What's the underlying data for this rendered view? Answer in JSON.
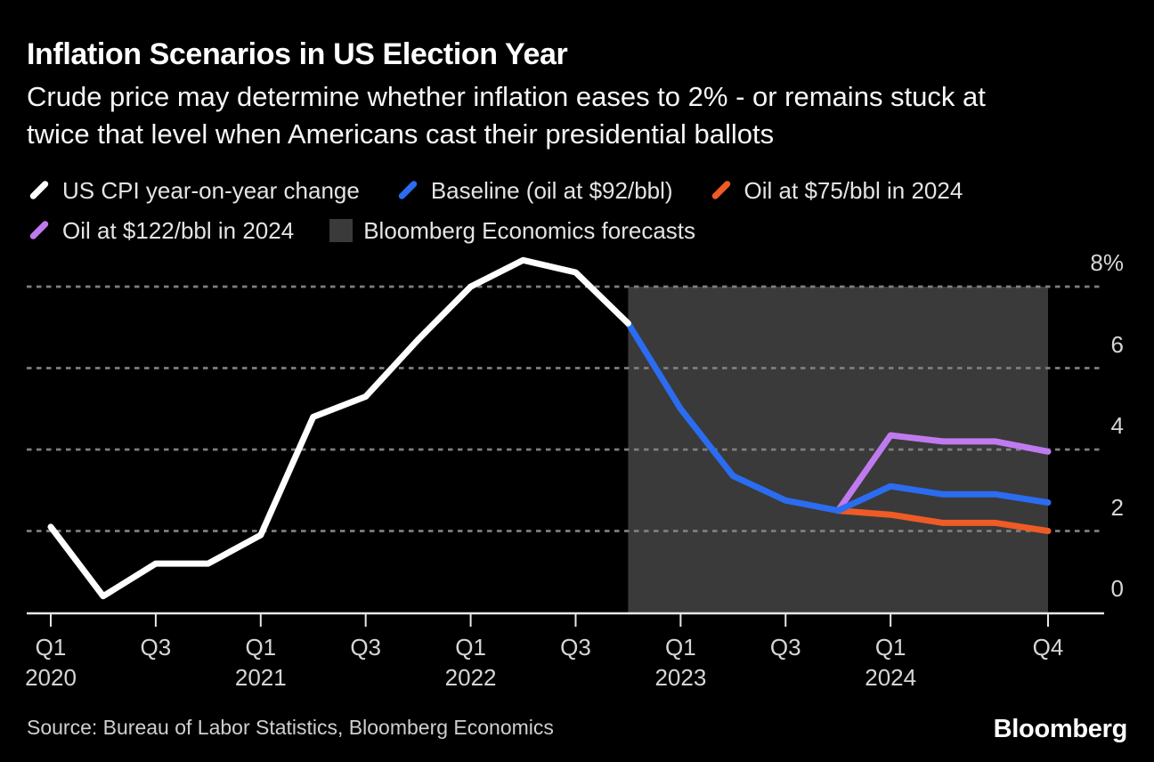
{
  "header": {
    "title": "Inflation Scenarios in US Election Year",
    "subtitle_lines": [
      "Crude price may determine whether inflation eases to 2% - or remains stuck at",
      "twice that level when Americans cast their presidential ballots"
    ]
  },
  "legend": {
    "items": [
      {
        "label": "US CPI year-on-year change",
        "color": "#ffffff",
        "marker": "slash"
      },
      {
        "label": "Baseline (oil at $92/bbl)",
        "color": "#2b6cf0",
        "marker": "slash"
      },
      {
        "label": "Oil at $75/bbl in 2024",
        "color": "#ef5b25",
        "marker": "slash"
      },
      {
        "label": "Oil at $122/bbl in 2024",
        "color": "#c07af0",
        "marker": "slash"
      },
      {
        "label": "Bloomberg Economics forecasts",
        "color": "#3a3a3a",
        "marker": "square"
      }
    ]
  },
  "chart_data": {
    "type": "line",
    "title": "Inflation Scenarios in US Election Year",
    "xlabel": "",
    "ylabel": "US CPI year-on-year change, %",
    "ylim": [
      0,
      8.8
    ],
    "grid": "dashed-horizontal",
    "legend_position": "top",
    "x_unit": "quarters from Q1 2020 (index 0) to Q4 2024 (index 19)",
    "yticks": [
      {
        "value": 8,
        "label": "8%"
      },
      {
        "value": 6,
        "label": "6"
      },
      {
        "value": 4,
        "label": "4"
      },
      {
        "value": 2,
        "label": "2"
      },
      {
        "value": 0,
        "label": "0"
      }
    ],
    "xticks": [
      {
        "q": 0,
        "label": "Q1",
        "year": "2020"
      },
      {
        "q": 2,
        "label": "Q3",
        "year": ""
      },
      {
        "q": 4,
        "label": "Q1",
        "year": "2021"
      },
      {
        "q": 6,
        "label": "Q3",
        "year": ""
      },
      {
        "q": 8,
        "label": "Q1",
        "year": "2022"
      },
      {
        "q": 10,
        "label": "Q3",
        "year": ""
      },
      {
        "q": 12,
        "label": "Q1",
        "year": "2023"
      },
      {
        "q": 14,
        "label": "Q3",
        "year": ""
      },
      {
        "q": 16,
        "label": "Q1",
        "year": "2024"
      },
      {
        "q": 19,
        "label": "Q4",
        "year": ""
      }
    ],
    "forecast_region": {
      "label": "Bloomberg Economics forecasts",
      "start_q": 11,
      "end_q": 19,
      "color": "#3a3a3a"
    },
    "series": [
      {
        "name": "US CPI year-on-year change",
        "slug": "us-cpi",
        "color": "#ffffff",
        "width": 7,
        "start_q": 0,
        "values": [
          2.1,
          0.4,
          1.2,
          1.2,
          1.9,
          4.8,
          5.3,
          6.7,
          8.0,
          8.65,
          8.35,
          7.1
        ]
      },
      {
        "name": "Baseline (oil at $92/bbl)",
        "slug": "baseline-92",
        "color": "#2b6cf0",
        "width": 7,
        "start_q": 11,
        "values": [
          7.1,
          5.0,
          3.35,
          2.75,
          2.5,
          3.1,
          2.9,
          2.9,
          2.7
        ]
      },
      {
        "name": "Oil at $75/bbl in 2024",
        "slug": "oil-75",
        "color": "#ef5b25",
        "width": 7,
        "start_q": 15,
        "values": [
          2.5,
          2.4,
          2.2,
          2.2,
          2.0
        ]
      },
      {
        "name": "Oil at $122/bbl in 2024",
        "slug": "oil-122",
        "color": "#c07af0",
        "width": 7,
        "start_q": 15,
        "values": [
          2.5,
          4.35,
          4.2,
          4.2,
          3.95
        ]
      }
    ],
    "style": {
      "background": "#000000",
      "gridline_color": "#7f7f7f",
      "axis_color": "#e8e8e8",
      "tick_label_color": "#d6d6d6"
    }
  },
  "footer": {
    "source": "Source: Bureau of Labor Statistics, Bloomberg Economics",
    "logo": "Bloomberg"
  }
}
